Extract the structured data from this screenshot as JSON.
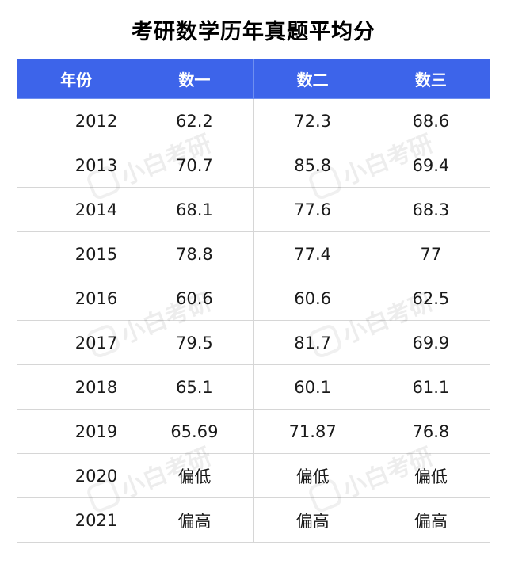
{
  "title": "考研数学历年真题平均分",
  "watermark_text": "小白考研",
  "colors": {
    "header_bg": "#3d64ea",
    "header_text": "#ffffff",
    "grid": "#d6d6d6"
  },
  "table": {
    "headers": [
      "年份",
      "数一",
      "数二",
      "数三"
    ],
    "rows": [
      [
        "2012",
        "62.2",
        "72.3",
        "68.6"
      ],
      [
        "2013",
        "70.7",
        "85.8",
        "69.4"
      ],
      [
        "2014",
        "68.1",
        "77.6",
        "68.3"
      ],
      [
        "2015",
        "78.8",
        "77.4",
        "77"
      ],
      [
        "2016",
        "60.6",
        "60.6",
        "62.5"
      ],
      [
        "2017",
        "79.5",
        "81.7",
        "69.9"
      ],
      [
        "2018",
        "65.1",
        "60.1",
        "61.1"
      ],
      [
        "2019",
        "65.69",
        "71.87",
        "76.8"
      ],
      [
        "2020",
        "偏低",
        "偏低",
        "偏低"
      ],
      [
        "2021",
        "偏高",
        "偏高",
        "偏高"
      ]
    ]
  }
}
